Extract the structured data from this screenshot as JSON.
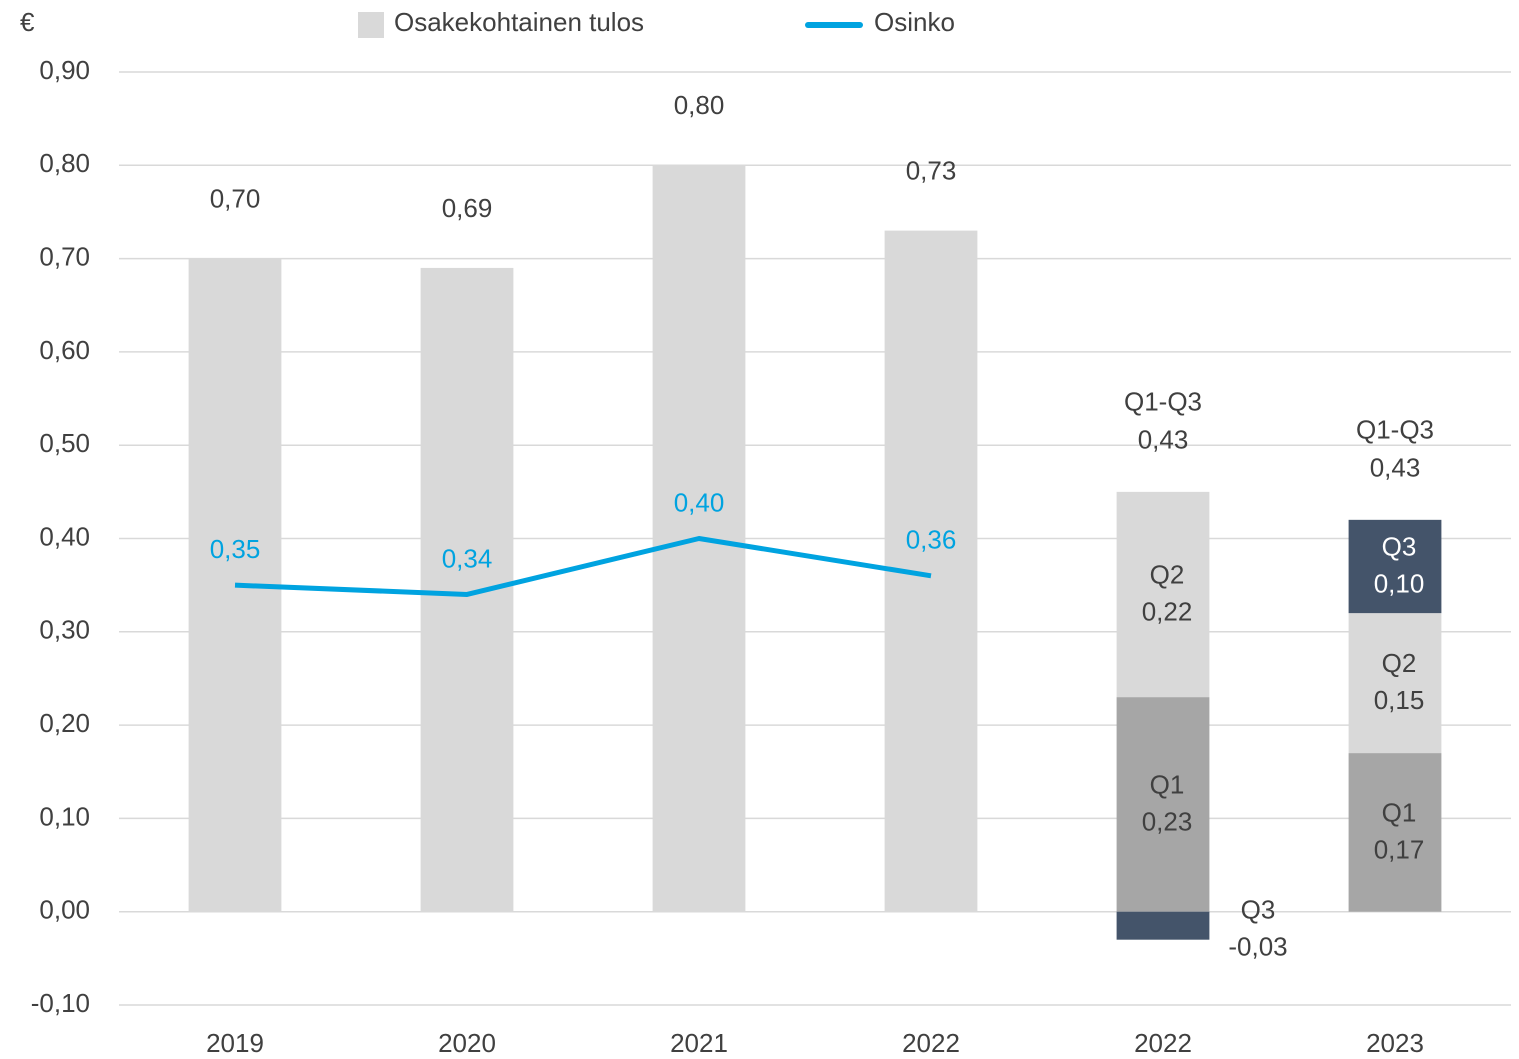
{
  "chart_data": {
    "type": "bar",
    "y_label": "€",
    "categories": [
      "2019",
      "2020",
      "2021",
      "2022",
      "2022",
      "2023"
    ],
    "ylim": [
      -0.1,
      0.9
    ],
    "yticks": [
      {
        "value": -0.1,
        "label": "-0,10"
      },
      {
        "value": 0,
        "label": "0,00"
      },
      {
        "value": 0.1,
        "label": "0,10"
      },
      {
        "value": 0.2,
        "label": "0,20"
      },
      {
        "value": 0.3,
        "label": "0,30"
      },
      {
        "value": 0.4,
        "label": "0,40"
      },
      {
        "value": 0.5,
        "label": "0,50"
      },
      {
        "value": 0.6,
        "label": "0,60"
      },
      {
        "value": 0.7,
        "label": "0,70"
      },
      {
        "value": 0.8,
        "label": "0,80"
      },
      {
        "value": 0.9,
        "label": "0,90"
      }
    ],
    "grid": true,
    "legend": "top",
    "series": [
      {
        "name": "Osakekohtainen tulos",
        "type": "bar",
        "in_legend": true,
        "color": "#d9d9d9",
        "label_color": "#404040",
        "values": [
          0.7,
          0.69,
          0.8,
          0.73,
          null,
          null
        ],
        "value_labels": [
          "0,70",
          "0,69",
          "0,80",
          "0,73",
          null,
          null
        ]
      },
      {
        "name": "Osinko",
        "type": "line",
        "in_legend": true,
        "color": "#00a3e0",
        "label_color": "#00a3e0",
        "values": [
          0.35,
          0.34,
          0.4,
          0.36,
          null,
          null
        ],
        "value_labels": [
          "0,35",
          "0,34",
          "0,40",
          "0,36",
          null,
          null
        ]
      },
      {
        "name": "Q1",
        "type": "stack",
        "in_legend": false,
        "color": "#a6a6a6",
        "label_color": "#404040",
        "values": [
          null,
          null,
          null,
          null,
          0.23,
          0.17
        ],
        "value_labels": [
          null,
          null,
          null,
          null,
          "0,23",
          "0,17"
        ]
      },
      {
        "name": "Q2",
        "type": "stack",
        "in_legend": false,
        "color": "#d9d9d9",
        "label_color": "#404040",
        "values": [
          null,
          null,
          null,
          null,
          0.22,
          0.15
        ],
        "value_labels": [
          null,
          null,
          null,
          null,
          "0,22",
          "0,15"
        ]
      },
      {
        "name": "Q3",
        "type": "stack",
        "in_legend": false,
        "color": "#44546a",
        "label_color": "#ffffff",
        "values": [
          null,
          null,
          null,
          null,
          -0.03,
          0.1
        ],
        "value_labels": [
          null,
          null,
          null,
          null,
          "-0,03",
          "0,10"
        ]
      }
    ],
    "totals": {
      "label": "Q1-Q3",
      "values": [
        null,
        null,
        null,
        null,
        0.43,
        0.43
      ],
      "value_labels": [
        null,
        null,
        null,
        null,
        "0,43",
        "0,43"
      ]
    }
  }
}
